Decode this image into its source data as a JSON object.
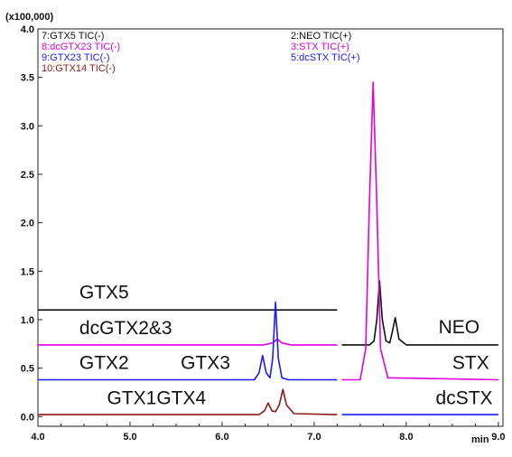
{
  "chart_data": {
    "type": "line",
    "title": "",
    "xlabel": "min",
    "ylabel": "",
    "y_multiplier": "(x100,000)",
    "xlim": [
      4.0,
      9.0
    ],
    "ylim": [
      -0.1,
      4.0
    ],
    "xticks": [
      "4.0",
      "5.0",
      "6.0",
      "7.0",
      "8.0",
      "9.0"
    ],
    "yticks": [
      "0.0",
      "0.5",
      "1.0",
      "1.5",
      "2.0",
      "2.5",
      "3.0",
      "3.5",
      "4.0"
    ],
    "grid": false,
    "legend_placement": "top-left and top-center",
    "legend_left": [
      {
        "label": "7:GTX5 TIC(-)",
        "color": "#111111"
      },
      {
        "label": "8:dcGTX23 TIC(-)",
        "color": "#e000e0"
      },
      {
        "label": "9:GTX23 TIC(-)",
        "color": "#1a1aff"
      },
      {
        "label": "10:GTX14 TIC(-)",
        "color": "#8b1a1a"
      }
    ],
    "legend_right": [
      {
        "label": "2:NEO TIC(+)",
        "color": "#111111"
      },
      {
        "label": "3:STX TIC(+)",
        "color": "#e000e0"
      },
      {
        "label": "5:dcSTX TIC(+)",
        "color": "#1a1aff"
      }
    ],
    "series": [
      {
        "name": "7:GTX5 TIC(-)",
        "color": "#111111",
        "x": [
          4.0,
          7.25
        ],
        "y": [
          1.1,
          1.1
        ]
      },
      {
        "name": "8:dcGTX23 TIC(-)",
        "color": "#e000e0",
        "x": [
          4.0,
          6.45,
          6.55,
          6.6,
          6.65,
          6.75,
          7.25
        ],
        "y": [
          0.74,
          0.74,
          0.76,
          0.8,
          0.76,
          0.74,
          0.74
        ]
      },
      {
        "name": "9:GTX23 TIC(-)",
        "color": "#1a1aff",
        "x": [
          4.0,
          6.35,
          6.4,
          6.44,
          6.48,
          6.52,
          6.55,
          6.58,
          6.61,
          6.65,
          6.72,
          7.25
        ],
        "y": [
          0.38,
          0.38,
          0.45,
          0.63,
          0.45,
          0.4,
          0.6,
          1.18,
          0.6,
          0.4,
          0.38,
          0.38
        ]
      },
      {
        "name": "10:GTX14 TIC(-)",
        "color": "#8b1a1a",
        "x": [
          4.0,
          6.4,
          6.46,
          6.5,
          6.54,
          6.58,
          6.62,
          6.66,
          6.7,
          6.78,
          7.25
        ],
        "y": [
          0.02,
          0.02,
          0.06,
          0.14,
          0.06,
          0.05,
          0.12,
          0.28,
          0.12,
          0.03,
          0.02
        ]
      },
      {
        "name": "2:NEO TIC(+)",
        "color": "#111111",
        "x": [
          7.3,
          7.6,
          7.65,
          7.68,
          7.71,
          7.74,
          7.78,
          7.82,
          7.85,
          7.88,
          7.92,
          8.0,
          9.0
        ],
        "y": [
          0.74,
          0.74,
          0.78,
          1.0,
          1.4,
          1.0,
          0.78,
          0.76,
          0.88,
          1.02,
          0.8,
          0.74,
          0.74
        ]
      },
      {
        "name": "3:STX TIC(+)",
        "color": "#e000e0",
        "x": [
          7.3,
          7.5,
          7.56,
          7.6,
          7.64,
          7.68,
          7.72,
          7.8,
          9.0
        ],
        "y": [
          0.38,
          0.38,
          0.7,
          2.2,
          3.45,
          2.2,
          0.7,
          0.4,
          0.38
        ]
      },
      {
        "name": "5:dcSTX TIC(+)",
        "color": "#1a1aff",
        "x": [
          7.3,
          9.0
        ],
        "y": [
          0.02,
          0.02
        ]
      }
    ],
    "annotations": [
      {
        "text": "GTX5",
        "x": 4.45,
        "y": 1.22
      },
      {
        "text": "dcGTX2&3",
        "x": 4.45,
        "y": 0.85
      },
      {
        "text": "GTX2",
        "x": 4.45,
        "y": 0.49
      },
      {
        "text": "GTX3",
        "x": 5.55,
        "y": 0.49
      },
      {
        "text": "GTX1GTX4",
        "x": 4.75,
        "y": 0.13
      },
      {
        "text": "NEO",
        "x": 8.35,
        "y": 0.86
      },
      {
        "text": "STX",
        "x": 8.5,
        "y": 0.49
      },
      {
        "text": "dcSTX",
        "x": 8.32,
        "y": 0.13
      }
    ]
  }
}
